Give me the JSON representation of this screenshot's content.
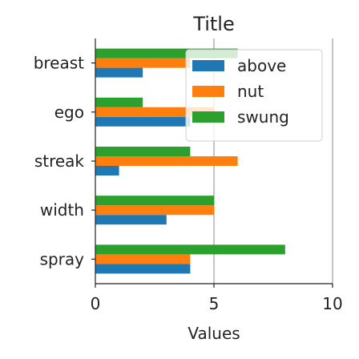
{
  "chart_data": {
    "type": "bar",
    "orientation": "horizontal",
    "title": "Title",
    "xlabel": "Values",
    "ylabel": "",
    "xlim": [
      0,
      10
    ],
    "xticks": [
      0,
      5,
      10
    ],
    "grid": "x",
    "legend_position": "top-right",
    "categories": [
      "breast",
      "ego",
      "streak",
      "width",
      "spray"
    ],
    "series": [
      {
        "name": "above",
        "color": "#1f77b4",
        "values": [
          2,
          4,
          1,
          3,
          4
        ]
      },
      {
        "name": "nut",
        "color": "#ff7f0e",
        "values": [
          4,
          5,
          6,
          5,
          4
        ]
      },
      {
        "name": "swung",
        "color": "#2ca02c",
        "values": [
          6,
          2,
          4,
          5,
          8
        ]
      }
    ]
  }
}
